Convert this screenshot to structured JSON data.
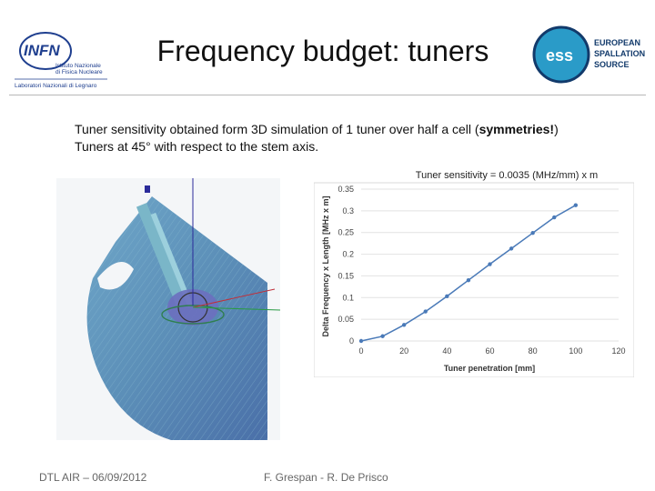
{
  "slide": {
    "title": "Frequency budget: tuners",
    "intro_line1_pre": "Tuner sensitivity obtained form 3D simulation of 1 tuner over half a cell (",
    "intro_line1_bold": "symmetries!",
    "intro_line1_post": ")",
    "intro_line2": "Tuners at 45° with respect to the stem axis.",
    "footer_left": "DTL AIR – 06/09/2012",
    "footer_center": "F. Grespan - R. De Prisco"
  },
  "logos": {
    "infn_text": "INFN",
    "infn_sub1": "Istituto Nazionale",
    "infn_sub2": "di Fisica Nucleare",
    "infn_lab": "Laboratori Nazionali di Legnaro",
    "ess_mark": "ess",
    "ess_line1": "EUROPEAN",
    "ess_line2": "SPALLATION",
    "ess_line3": "SOURCE"
  },
  "colors": {
    "infn_blue": "#1f3f8f",
    "ess_teal": "#2a9bc8",
    "ess_navy": "#123a6b",
    "series": "#4a7ab8"
  },
  "chart_data": {
    "type": "line",
    "title": "Tuner sensitivity = 0.0035 (MHz/mm) x m",
    "xlabel": "Tuner penetration [mm]",
    "ylabel": "Delta Frequency x Length [MHz x m]",
    "xlim": [
      0,
      120
    ],
    "ylim": [
      0,
      0.35
    ],
    "xticks": [
      0,
      20,
      40,
      60,
      80,
      100,
      120
    ],
    "yticks": [
      0,
      0.05,
      0.1,
      0.15,
      0.2,
      0.25,
      0.3,
      0.35
    ],
    "ytick_labels": [
      "0",
      "0.05",
      "0.1",
      "0.15",
      "0.2",
      "0.25",
      "0.3",
      "0.35"
    ],
    "grid": true,
    "legend": "none",
    "series": [
      {
        "x": [
          0,
          10,
          20,
          30,
          40,
          50,
          60,
          70,
          80,
          90,
          100
        ],
        "y": [
          0,
          0.011,
          0.037,
          0.068,
          0.103,
          0.14,
          0.177,
          0.213,
          0.249,
          0.285,
          0.313
        ]
      }
    ]
  }
}
